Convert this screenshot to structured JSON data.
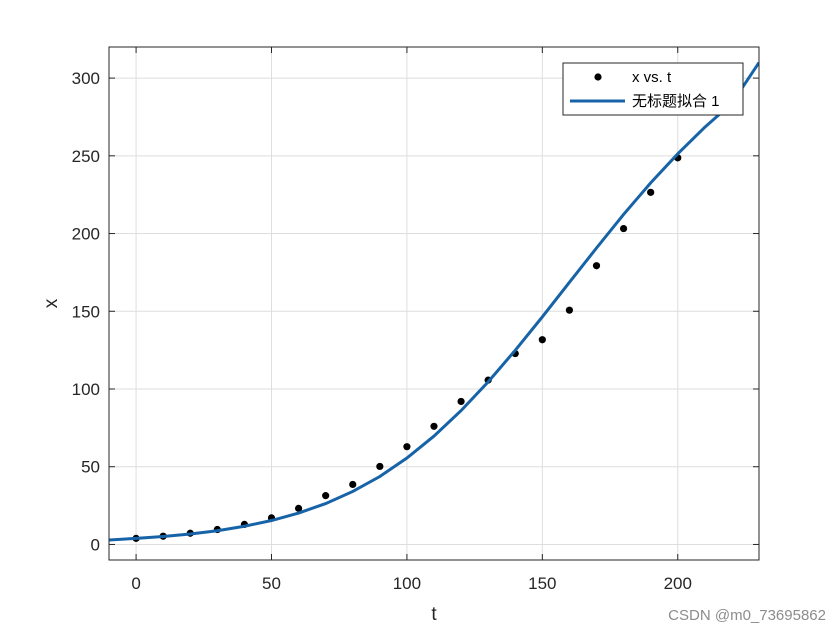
{
  "chart_data": {
    "type": "scatter",
    "xlabel": "t",
    "ylabel": "x",
    "xlim": [
      -10,
      230
    ],
    "ylim": [
      -10,
      320
    ],
    "x_ticks": [
      0,
      50,
      100,
      150,
      200
    ],
    "y_ticks": [
      0,
      50,
      100,
      150,
      200,
      250,
      300
    ],
    "grid": true,
    "legend_position": "top-right",
    "series": [
      {
        "name": "x vs. t",
        "kind": "points",
        "color": "#000000",
        "x": [
          0,
          10,
          20,
          30,
          40,
          50,
          60,
          70,
          80,
          90,
          100,
          110,
          120,
          130,
          140,
          150,
          160,
          170,
          180,
          190,
          200
        ],
        "y": [
          3.9,
          5.3,
          7.2,
          9.6,
          12.9,
          17.1,
          23.2,
          31.4,
          38.6,
          50.2,
          62.9,
          76.0,
          92.0,
          105.7,
          122.8,
          131.7,
          150.7,
          179.3,
          203.2,
          226.5,
          248.7
        ]
      },
      {
        "name": "无标题拟合 1",
        "kind": "line",
        "color": "#1763a8",
        "x": [
          -10,
          0,
          10,
          20,
          30,
          40,
          50,
          60,
          70,
          80,
          90,
          100,
          110,
          120,
          130,
          140,
          150,
          160,
          170,
          180,
          190,
          200,
          210,
          220,
          230
        ],
        "y": [
          2.9,
          3.9,
          5.1,
          6.7,
          8.8,
          11.7,
          15.4,
          20.2,
          26.3,
          34.1,
          43.7,
          55.6,
          69.7,
          86.1,
          104.6,
          124.9,
          146.4,
          168.6,
          190.7,
          212.3,
          232.6,
          251.3,
          268.4,
          283.8,
          310.0
        ]
      }
    ]
  },
  "watermark": "CSDN @m0_73695862"
}
